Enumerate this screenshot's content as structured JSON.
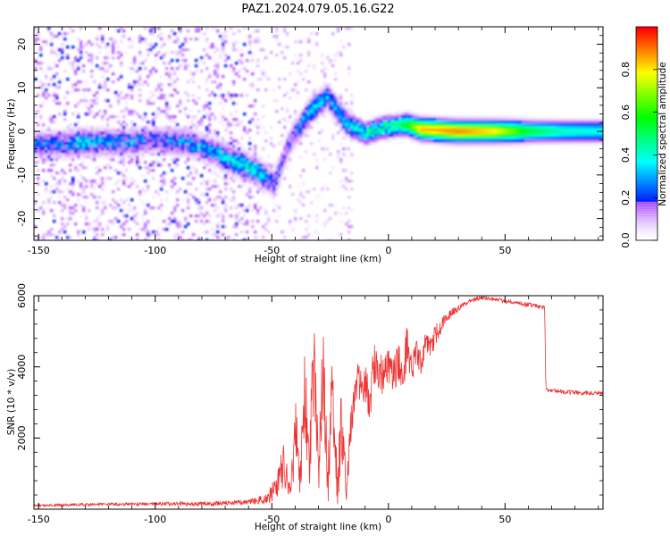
{
  "title": "PAZ1.2024.079.05.16.G22",
  "chart_data": [
    {
      "type": "heatmap",
      "xlabel": "Height of straight line (km)",
      "ylabel": "Frequency (Hz)",
      "xlim": [
        -152,
        92
      ],
      "ylim": [
        -25,
        24
      ],
      "xticks": [
        -150,
        -100,
        -50,
        0,
        50
      ],
      "yticks": [
        -20,
        -10,
        0,
        10,
        20
      ],
      "colorbar": {
        "label": "Normalized spectral amplitude",
        "range": [
          0,
          1
        ],
        "ticks": [
          "0.0",
          "0.2",
          "0.4",
          "0.6",
          "0.8"
        ],
        "tick_values": [
          0,
          0.2,
          0.4,
          0.6,
          0.8
        ],
        "colormap": "gist_rainbow_r"
      },
      "ridge": [
        {
          "x": -140,
          "y": -3,
          "v": 0.25
        },
        {
          "x": -133,
          "y": -2.5,
          "v": 0.35
        },
        {
          "x": -122,
          "y": -2.5,
          "v": 0.28
        },
        {
          "x": -110,
          "y": -2.5,
          "v": 0.3
        },
        {
          "x": -100,
          "y": -2,
          "v": 0.22
        },
        {
          "x": -86,
          "y": -2.5,
          "v": 0.3
        },
        {
          "x": -76,
          "y": -4.5,
          "v": 0.3
        },
        {
          "x": -66,
          "y": -7,
          "v": 0.38
        },
        {
          "x": -57,
          "y": -9,
          "v": 0.4
        },
        {
          "x": -49,
          "y": -12,
          "v": 0.25
        },
        {
          "x": -42,
          "y": -2,
          "v": 0.22
        },
        {
          "x": -33,
          "y": 5,
          "v": 0.35
        },
        {
          "x": -26,
          "y": 8,
          "v": 0.3
        },
        {
          "x": -18,
          "y": 2,
          "v": 0.32
        },
        {
          "x": -10,
          "y": -0.5,
          "v": 0.45
        },
        {
          "x": -2,
          "y": 1,
          "v": 0.5
        },
        {
          "x": 8,
          "y": 1.5,
          "v": 0.55
        },
        {
          "x": 14,
          "y": 0.5,
          "v": 0.85
        },
        {
          "x": 30,
          "y": 0,
          "v": 0.9
        },
        {
          "x": 45,
          "y": 0,
          "v": 0.82
        },
        {
          "x": 60,
          "y": 0,
          "v": 0.55
        },
        {
          "x": 75,
          "y": 0,
          "v": 0.42
        },
        {
          "x": 91,
          "y": 0,
          "v": 0.38
        }
      ]
    },
    {
      "type": "line",
      "xlabel": "Height of straight line (km)",
      "ylabel": "SNR (10 * v/v)",
      "xlim": [
        -152,
        92
      ],
      "ylim": [
        0,
        6000
      ],
      "xticks": [
        -150,
        -100,
        -50,
        0,
        50
      ],
      "yticks": [
        2000,
        4000,
        6000
      ],
      "color": "#ee3333",
      "series": [
        {
          "x": [
            -152,
            -140,
            -120,
            -100,
            -80,
            -60,
            -52,
            -48,
            -45,
            -42,
            -40,
            -38,
            -36,
            -34,
            -32,
            -30,
            -28,
            -26,
            -24,
            -22,
            -20,
            -18,
            -16,
            -14,
            -12,
            -10,
            -8,
            -6,
            -4,
            -2,
            0,
            2,
            4,
            6,
            8,
            10,
            12,
            14,
            16,
            18,
            20,
            22,
            25,
            28,
            31,
            34,
            37,
            40,
            45,
            50,
            55,
            60,
            64,
            67,
            67.5,
            70,
            75,
            80,
            85,
            92
          ],
          "y": [
            100,
            120,
            140,
            150,
            150,
            200,
            300,
            600,
            1200,
            500,
            2400,
            800,
            3500,
            900,
            4300,
            1000,
            3800,
            700,
            3200,
            600,
            2600,
            400,
            2500,
            3400,
            3700,
            3500,
            3000,
            4200,
            3700,
            3800,
            4100,
            3600,
            4300,
            3700,
            4600,
            3900,
            4300,
            4100,
            4700,
            4500,
            4900,
            5100,
            5400,
            5550,
            5700,
            5800,
            5900,
            5950,
            5900,
            5850,
            5800,
            5750,
            5700,
            5650,
            3350,
            3350,
            3300,
            3280,
            3270,
            3250
          ],
          "noise": [
            30,
            40,
            40,
            50,
            60,
            70,
            150,
            400,
            700,
            500,
            1200,
            700,
            1500,
            800,
            1600,
            900,
            1500,
            700,
            1400,
            600,
            1300,
            400,
            700,
            600,
            600,
            600,
            600,
            700,
            600,
            600,
            600,
            600,
            600,
            500,
            600,
            500,
            500,
            450,
            400,
            350,
            300,
            250,
            150,
            120,
            100,
            80,
            60,
            60,
            60,
            60,
            60,
            60,
            60,
            60,
            60,
            60,
            60,
            60,
            60,
            60
          ]
        }
      ]
    }
  ]
}
